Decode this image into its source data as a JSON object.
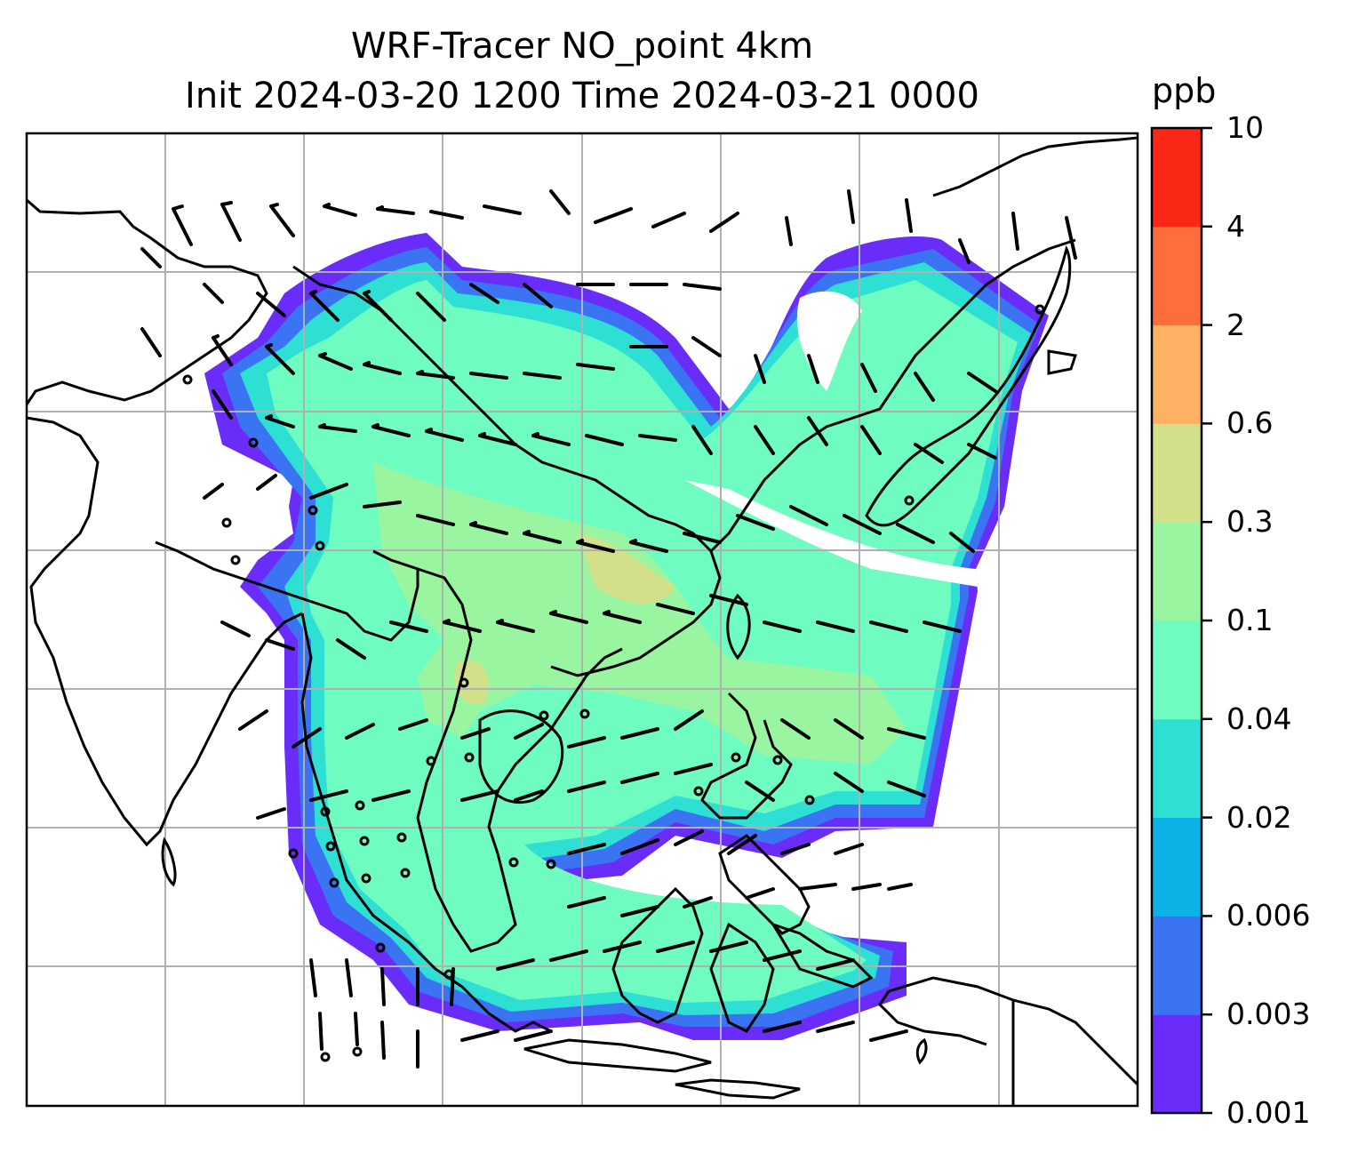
{
  "title_line1": "WRF-Tracer NO_point 4km",
  "title_line2": "Init 2024-03-20 1200 Time 2024-03-21 0000",
  "colorbar": {
    "unit": "ppb",
    "levels": [
      "0.001",
      "0.003",
      "0.006",
      "0.02",
      "0.04",
      "0.1",
      "0.3",
      "0.6",
      "2",
      "4",
      "10"
    ],
    "colors": [
      "#6a2cf8",
      "#3b74f2",
      "#0cb2e6",
      "#2ee0d4",
      "#6ffcc0",
      "#9af5a0",
      "#d2e08a",
      "#fdb162",
      "#fe6d3c",
      "#fb2818"
    ]
  },
  "map": {
    "gridlines": true,
    "coastline_color": "#000000",
    "wind_barbs": true
  }
}
